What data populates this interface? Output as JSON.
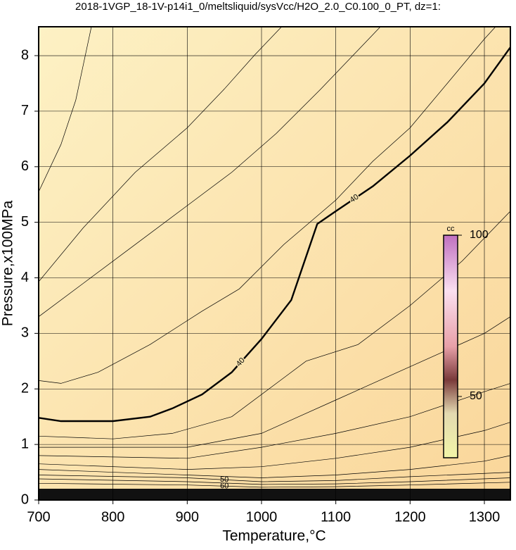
{
  "chart_data": {
    "type": "contour",
    "title": "2018-1VGP_18-1V-p14i1_0/meltsliquid/sysVcc/H2O_2.0_C0.100_0_PT, dz=1:",
    "xlabel": "Temperature,°C",
    "ylabel": "Pressure,x100MPa",
    "xlim": [
      700,
      1335
    ],
    "ylim": [
      0,
      8.52
    ],
    "xticks": [
      700,
      800,
      900,
      1000,
      1100,
      1200,
      1300
    ],
    "yticks": [
      0,
      1,
      2,
      3,
      4,
      5,
      6,
      7,
      8
    ],
    "grid": true,
    "colorbar": {
      "label": "cc",
      "lim": [
        31,
        100
      ],
      "ticks": [
        50,
        100
      ]
    },
    "series": [
      {
        "level_label": "40",
        "thick": true,
        "x": [
          700,
          730,
          800,
          850,
          880,
          920,
          960,
          1000,
          1040,
          1075,
          1100,
          1150,
          1200,
          1250,
          1300,
          1335
        ],
        "values": [
          1.48,
          1.42,
          1.42,
          1.5,
          1.65,
          1.9,
          2.3,
          2.9,
          3.6,
          4.97,
          5.2,
          5.65,
          6.2,
          6.8,
          7.5,
          8.15
        ]
      },
      {
        "x": [
          700,
          730,
          750,
          771
        ],
        "values": [
          5.55,
          6.4,
          7.2,
          8.52
        ]
      },
      {
        "x": [
          700,
          760,
          830,
          900,
          950,
          990,
          1027
        ],
        "values": [
          3.93,
          4.9,
          5.9,
          6.7,
          7.4,
          8.0,
          8.52
        ]
      },
      {
        "x": [
          700,
          760,
          830,
          900,
          960,
          1020,
          1080,
          1130,
          1160
        ],
        "values": [
          3.3,
          3.9,
          4.6,
          5.3,
          5.9,
          6.6,
          7.4,
          8.1,
          8.52
        ]
      },
      {
        "x": [
          700,
          730,
          780,
          850,
          920,
          970,
          1030,
          1100,
          1150,
          1200,
          1250,
          1300,
          1315
        ],
        "values": [
          2.15,
          2.1,
          2.3,
          2.8,
          3.4,
          3.8,
          4.6,
          5.4,
          6.1,
          6.7,
          7.5,
          8.3,
          8.52
        ]
      },
      {
        "x": [
          700,
          800,
          880,
          960,
          1030,
          1060,
          1130,
          1200,
          1270,
          1335
        ],
        "values": [
          1.15,
          1.1,
          1.2,
          1.5,
          2.2,
          2.5,
          2.8,
          3.5,
          4.3,
          5.2
        ]
      },
      {
        "x": [
          700,
          900,
          1000,
          1050,
          1100,
          1200,
          1300,
          1335
        ],
        "values": [
          0.95,
          0.95,
          1.2,
          1.5,
          1.8,
          2.4,
          3.0,
          3.3
        ]
      },
      {
        "x": [
          700,
          900,
          1000,
          1100,
          1200,
          1300,
          1335
        ],
        "values": [
          0.8,
          0.75,
          0.95,
          1.2,
          1.5,
          1.95,
          2.1
        ]
      },
      {
        "x": [
          700,
          900,
          1000,
          1100,
          1200,
          1300,
          1335
        ],
        "values": [
          0.65,
          0.55,
          0.6,
          0.75,
          0.95,
          1.25,
          1.4
        ]
      },
      {
        "x": [
          700,
          900,
          1000,
          1100,
          1200,
          1300,
          1335
        ],
        "values": [
          0.55,
          0.45,
          0.4,
          0.45,
          0.55,
          0.7,
          0.8
        ]
      },
      {
        "level_label": "50",
        "x": [
          700,
          900,
          1000,
          1100,
          1200,
          1335
        ],
        "values": [
          0.45,
          0.4,
          0.33,
          0.35,
          0.42,
          0.5
        ]
      },
      {
        "x": [
          700,
          900,
          1000,
          1100,
          1200,
          1335
        ],
        "values": [
          0.38,
          0.33,
          0.28,
          0.29,
          0.33,
          0.4
        ]
      },
      {
        "level_label": "60",
        "x": [
          700,
          900,
          1000,
          1100,
          1200,
          1335
        ],
        "values": [
          0.3,
          0.27,
          0.23,
          0.24,
          0.27,
          0.32
        ]
      }
    ]
  }
}
